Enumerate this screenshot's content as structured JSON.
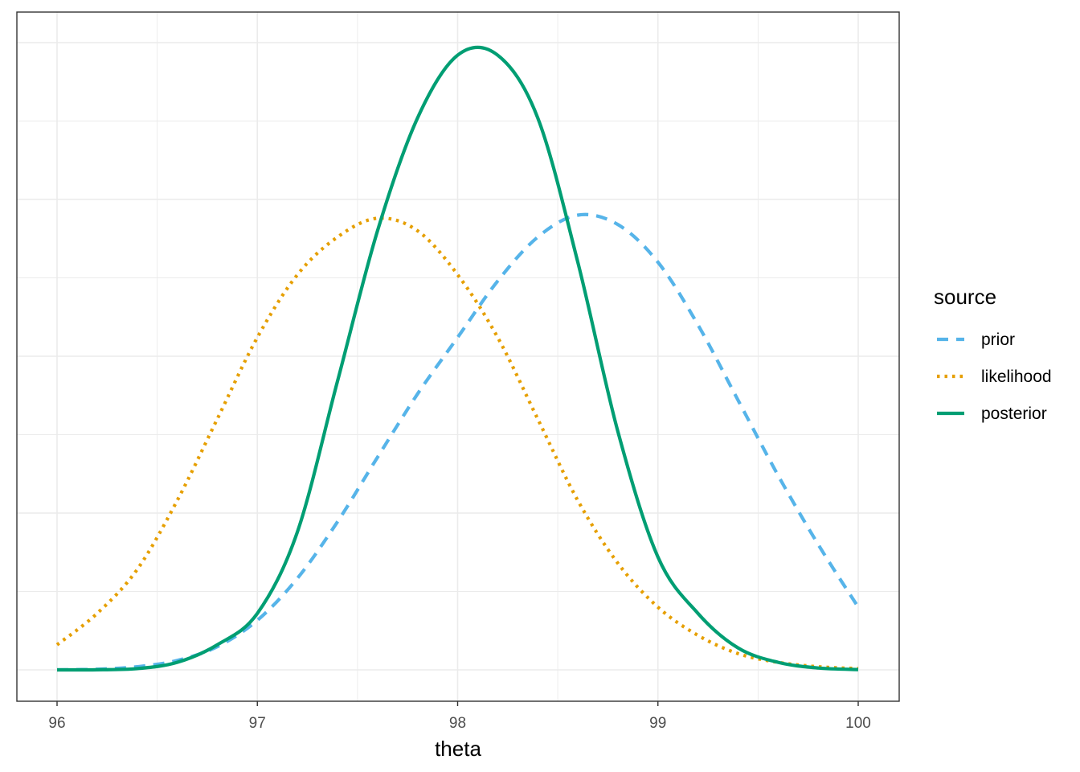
{
  "chart_data": {
    "type": "line",
    "xlabel": "theta",
    "ylabel": "",
    "xlim": [
      96,
      100
    ],
    "ylim": [
      0,
      1
    ],
    "x_ticks": [
      96,
      97,
      98,
      99,
      100
    ],
    "x_tick_labels": [
      "96",
      "97",
      "98",
      "99",
      "100"
    ],
    "grid": true,
    "legend": {
      "title": "source",
      "position": "right"
    },
    "series": [
      {
        "name": "prior",
        "color": "#56B4E9",
        "linestyle": "dashed",
        "x": [
          96.0,
          96.2,
          96.4,
          96.6,
          96.8,
          97.0,
          97.2,
          97.4,
          97.6,
          97.8,
          98.0,
          98.2,
          98.4,
          98.6,
          98.8,
          99.0,
          99.2,
          99.4,
          99.6,
          99.8,
          100.0
        ],
        "y": [
          0.0001,
          0.001,
          0.005,
          0.015,
          0.037,
          0.079,
          0.146,
          0.236,
          0.339,
          0.44,
          0.53,
          0.62,
          0.69,
          0.725,
          0.71,
          0.65,
          0.55,
          0.43,
          0.31,
          0.2,
          0.1
        ]
      },
      {
        "name": "likelihood",
        "color": "#E69F00",
        "linestyle": "dotted",
        "x": [
          96.0,
          96.2,
          96.4,
          96.6,
          96.8,
          97.0,
          97.2,
          97.4,
          97.6,
          97.8,
          98.0,
          98.2,
          98.4,
          98.6,
          98.8,
          99.0,
          99.2,
          99.4,
          99.6,
          99.8,
          100.0
        ],
        "y": [
          0.04,
          0.09,
          0.16,
          0.27,
          0.4,
          0.53,
          0.63,
          0.69,
          0.72,
          0.7,
          0.63,
          0.53,
          0.4,
          0.27,
          0.17,
          0.1,
          0.055,
          0.026,
          0.012,
          0.005,
          0.002
        ]
      },
      {
        "name": "posterior",
        "color": "#009E73",
        "linestyle": "solid",
        "x": [
          96.0,
          96.2,
          96.4,
          96.6,
          96.8,
          97.0,
          97.2,
          97.4,
          97.6,
          97.8,
          98.0,
          98.2,
          98.4,
          98.6,
          98.8,
          99.0,
          99.2,
          99.4,
          99.6,
          99.8,
          100.0
        ],
        "y": [
          0.0,
          0.0002,
          0.002,
          0.012,
          0.04,
          0.09,
          0.22,
          0.46,
          0.7,
          0.88,
          0.98,
          0.98,
          0.88,
          0.65,
          0.38,
          0.18,
          0.09,
          0.035,
          0.012,
          0.003,
          0.0005
        ]
      }
    ]
  }
}
